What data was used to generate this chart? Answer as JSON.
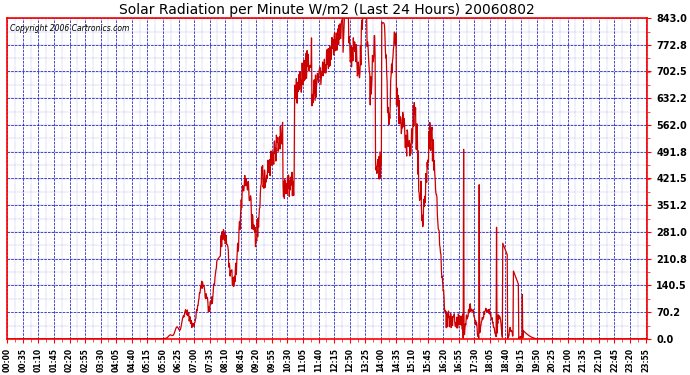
{
  "title": "Solar Radiation per Minute W/m2 (Last 24 Hours) 20060802",
  "copyright": "Copyright 2006 Cartronics.com",
  "y_ticks": [
    0.0,
    70.2,
    140.5,
    210.8,
    281.0,
    351.2,
    421.5,
    491.8,
    562.0,
    632.2,
    702.5,
    772.8,
    843.0
  ],
  "ymin": 0.0,
  "ymax": 843.0,
  "line_color": "#cc0000",
  "background_color": "#ffffff",
  "grid_color": "#0000bb",
  "title_color": "#000000",
  "num_points": 1440,
  "figwidth": 6.9,
  "figheight": 3.75,
  "dpi": 100
}
